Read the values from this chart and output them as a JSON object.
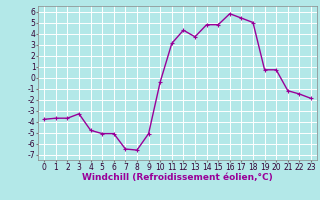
{
  "x": [
    0,
    1,
    2,
    3,
    4,
    5,
    6,
    7,
    8,
    9,
    10,
    11,
    12,
    13,
    14,
    15,
    16,
    17,
    18,
    19,
    20,
    21,
    22,
    23
  ],
  "y": [
    -3.8,
    -3.7,
    -3.7,
    -3.3,
    -4.8,
    -5.1,
    -5.1,
    -6.5,
    -6.6,
    -5.1,
    -0.4,
    3.1,
    4.3,
    3.7,
    4.8,
    4.8,
    5.8,
    5.4,
    5.0,
    0.7,
    0.7,
    -1.2,
    -1.5,
    -1.9
  ],
  "line_color": "#990099",
  "bg_color": "#b3e8e8",
  "grid_color": "#ffffff",
  "xlabel": "Windchill (Refroidissement éolien,°C)",
  "xlim": [
    -0.5,
    23.5
  ],
  "ylim": [
    -7.5,
    6.5
  ],
  "yticks": [
    -7,
    -6,
    -5,
    -4,
    -3,
    -2,
    -1,
    0,
    1,
    2,
    3,
    4,
    5,
    6
  ],
  "xticks": [
    0,
    1,
    2,
    3,
    4,
    5,
    6,
    7,
    8,
    9,
    10,
    11,
    12,
    13,
    14,
    15,
    16,
    17,
    18,
    19,
    20,
    21,
    22,
    23
  ],
  "marker": "+",
  "markersize": 3,
  "linewidth": 1.0,
  "xlabel_fontsize": 6.5,
  "tick_fontsize": 5.5
}
